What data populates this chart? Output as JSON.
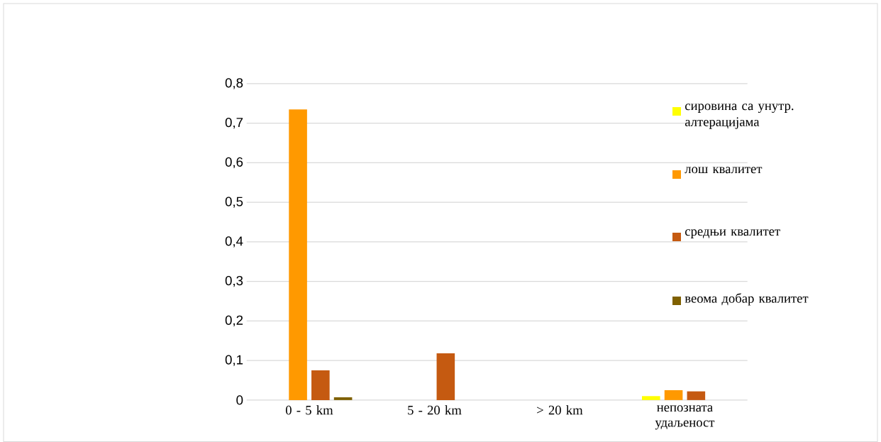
{
  "chart_data": {
    "type": "bar",
    "categories": [
      "0 - 5 km",
      "5 - 20 km",
      "> 20 km",
      "непозната удаљеност"
    ],
    "series": [
      {
        "name": "сировина са унутр. алтерацијама",
        "color": "#ffff00",
        "values": [
          0,
          0,
          0,
          0.01
        ]
      },
      {
        "name": "лош квалитет",
        "color": "#ff9900",
        "values": [
          0.735,
          0,
          0,
          0.025
        ]
      },
      {
        "name": "средњи квалитет",
        "color": "#c55a11",
        "values": [
          0.075,
          0.118,
          0,
          0.022
        ]
      },
      {
        "name": "веома добар квалитет",
        "color": "#7f6000",
        "values": [
          0.007,
          0,
          0,
          0
        ]
      }
    ],
    "ylim": [
      0,
      0.8
    ],
    "yticks": [
      0,
      {
        "value": 0.1,
        "label": "0,1"
      },
      {
        "value": 0.2,
        "label": "0,2"
      },
      {
        "value": 0.3,
        "label": "0,3"
      },
      {
        "value": 0.4,
        "label": "0,4"
      },
      {
        "value": 0.5,
        "label": "0,5"
      },
      {
        "value": 0.6,
        "label": "0,6"
      },
      {
        "value": 0.7,
        "label": "0,7"
      },
      {
        "value": 0.8,
        "label": "0,8"
      }
    ],
    "grid": "y",
    "legend": "right"
  }
}
